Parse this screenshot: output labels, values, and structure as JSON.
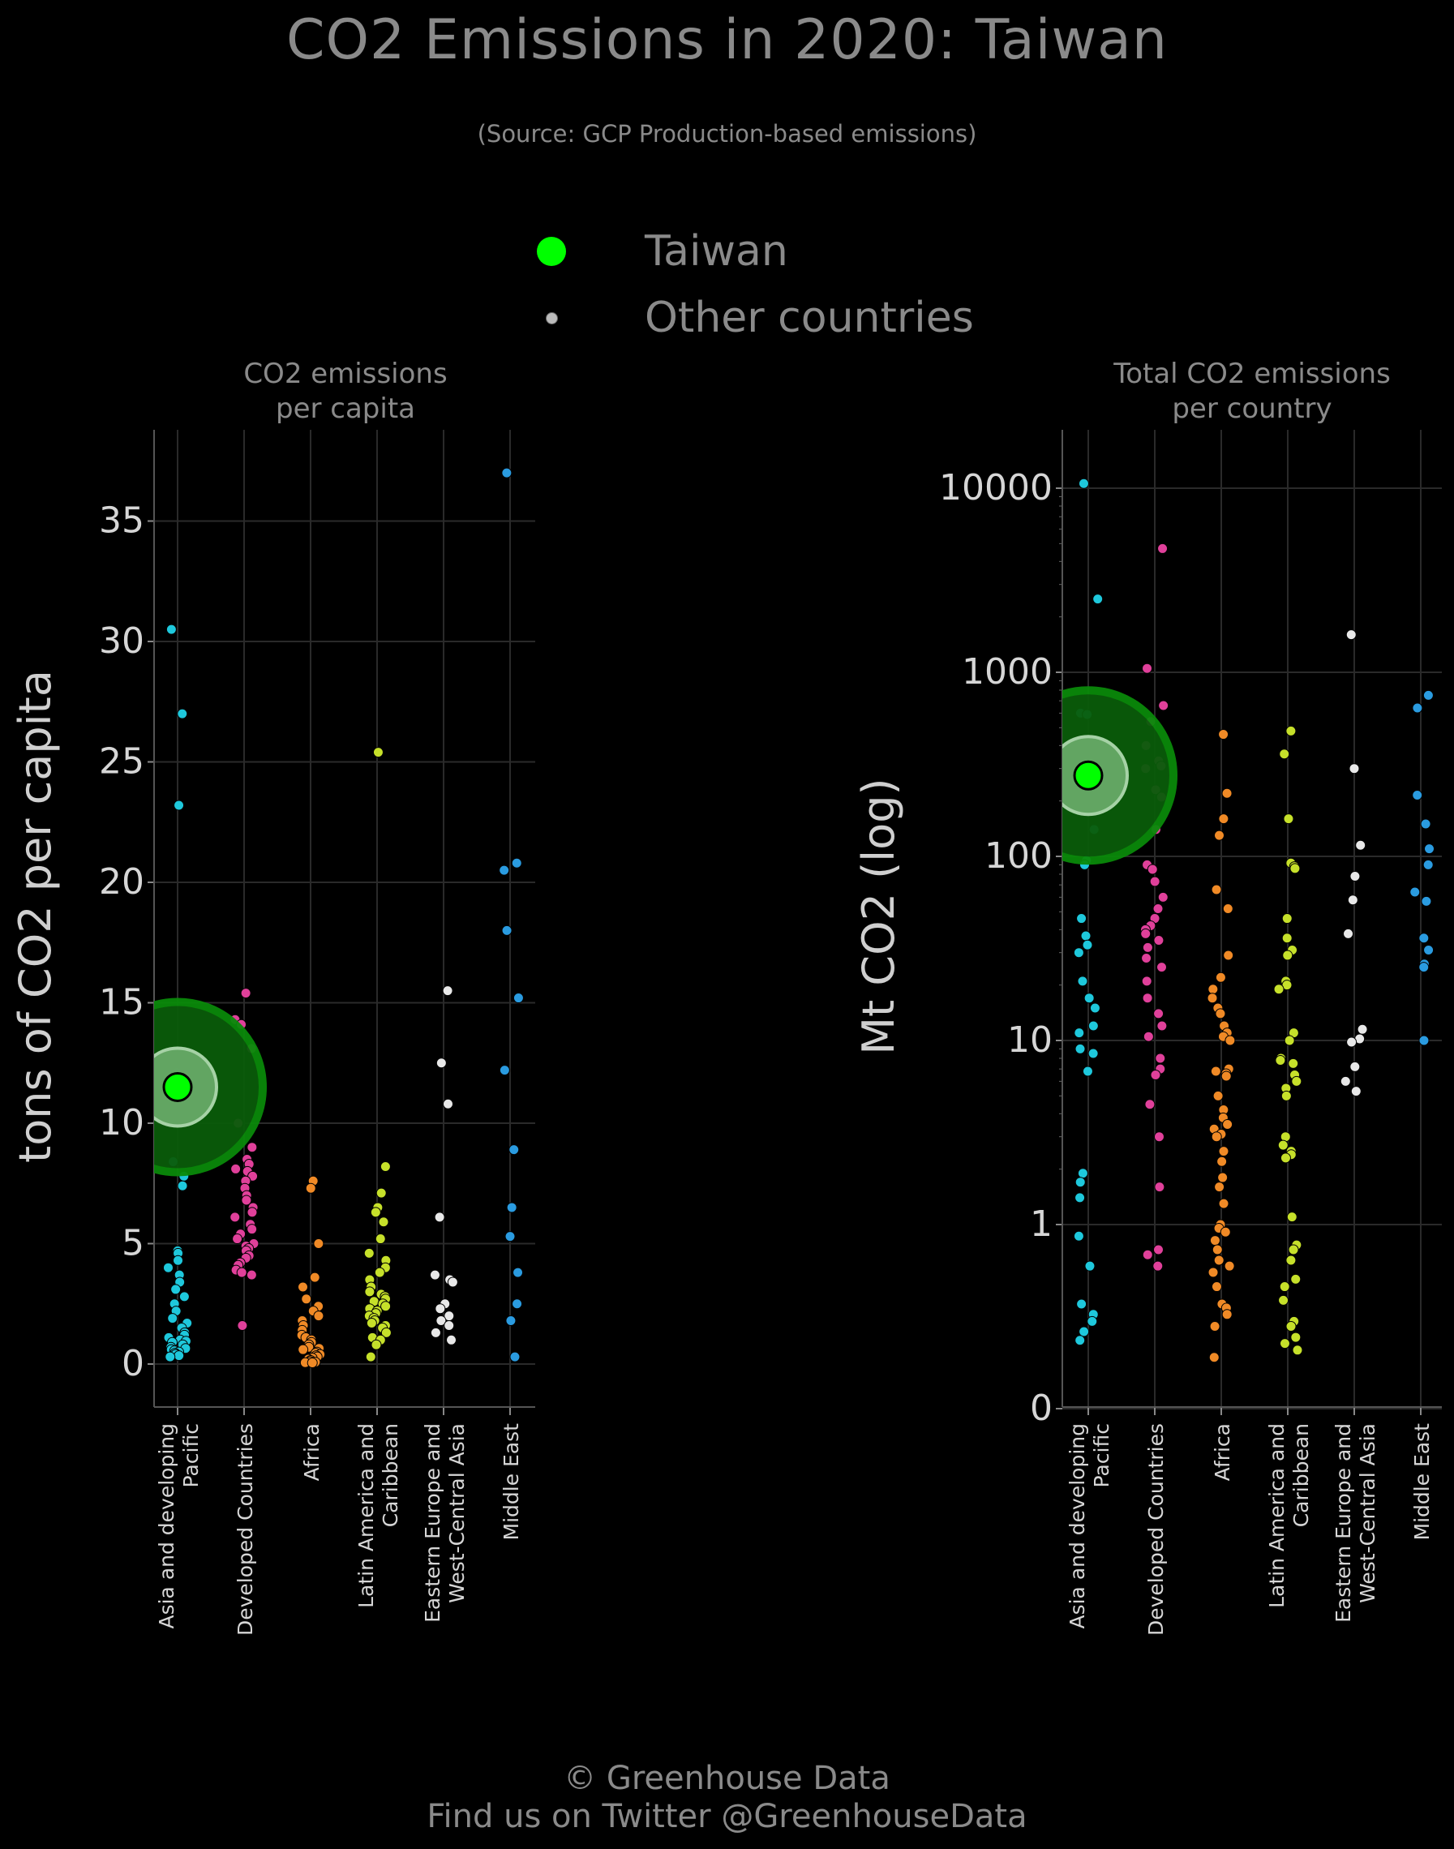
{
  "title": "CO2 Emissions in 2020: Taiwan",
  "subtitle": "(Source: GCP Production-based emissions)",
  "legend": {
    "highlight_label": "Taiwan",
    "other_label": "Other countries",
    "highlight_color": "#00ff00",
    "other_color": "#bbbbbb"
  },
  "footer": {
    "line1": "© Greenhouse Data",
    "line2": "Find us on Twitter @GreenhouseData"
  },
  "colors": {
    "Asia and developing Pacific": "#1ec8dc",
    "Developed Countries": "#e0409a",
    "Africa": "#f08a26",
    "Latin America and Caribbean": "#c6e02a",
    "Eastern Europe and West-Central Asia": "#e8e8e8",
    "Middle East": "#2a9be0"
  },
  "chart_data": [
    {
      "type": "scatter",
      "title": "CO2 emissions\nper capita",
      "ylabel": "tons of CO2 per capita",
      "ylim": [
        -1.5,
        39
      ],
      "yticks": [
        0,
        5,
        10,
        15,
        20,
        25,
        30,
        35
      ],
      "scale": "linear",
      "grid": true,
      "categories": [
        "Asia and developing\nPacific",
        "Developed Countries",
        "Africa",
        "Latin America and\nCaribbean",
        "Eastern Europe and\nWest-Central Asia",
        "Middle East"
      ],
      "highlight": {
        "name": "Taiwan",
        "category_index": 0,
        "value": 11.5
      },
      "series": [
        {
          "category": "Asia and developing Pacific",
          "values": [
            30.5,
            27.0,
            23.2,
            12.1,
            8.4,
            7.8,
            7.4,
            4.7,
            4.6,
            4.3,
            4.0,
            3.7,
            3.4,
            3.1,
            2.8,
            2.5,
            2.2,
            1.9,
            1.7,
            1.5,
            1.3,
            1.2,
            1.1,
            1.0,
            0.95,
            0.9,
            0.8,
            0.7,
            0.65,
            0.6,
            0.55,
            0.5,
            0.45,
            0.4,
            0.35,
            0.3
          ]
        },
        {
          "category": "Developed Countries",
          "values": [
            15.4,
            14.3,
            14.1,
            13.1,
            10.0,
            9.0,
            8.5,
            8.3,
            8.1,
            8.0,
            7.8,
            7.6,
            7.3,
            7.0,
            6.8,
            6.5,
            6.3,
            6.1,
            5.8,
            5.6,
            5.4,
            5.2,
            5.0,
            4.9,
            4.8,
            4.7,
            4.5,
            4.4,
            4.2,
            4.1,
            3.9,
            3.8,
            3.7,
            1.6
          ]
        },
        {
          "category": "Africa",
          "values": [
            7.6,
            7.3,
            5.0,
            3.6,
            3.2,
            2.7,
            2.4,
            2.2,
            2.0,
            1.8,
            1.6,
            1.4,
            1.2,
            1.1,
            1.0,
            0.9,
            0.8,
            0.7,
            0.65,
            0.6,
            0.5,
            0.45,
            0.4,
            0.35,
            0.3,
            0.25,
            0.2,
            0.15,
            0.1,
            0.08,
            0.06,
            0.05
          ]
        },
        {
          "category": "Latin America and Caribbean",
          "values": [
            25.4,
            8.2,
            7.1,
            6.5,
            6.3,
            5.9,
            5.2,
            4.6,
            4.3,
            4.0,
            3.8,
            3.5,
            3.2,
            3.0,
            2.9,
            2.8,
            2.7,
            2.6,
            2.5,
            2.4,
            2.3,
            2.2,
            2.1,
            2.0,
            1.9,
            1.8,
            1.7,
            1.6,
            1.5,
            1.3,
            1.1,
            1.0,
            0.8,
            0.3
          ]
        },
        {
          "category": "Eastern Europe and West-Central Asia",
          "values": [
            15.5,
            12.5,
            10.8,
            6.1,
            3.7,
            3.5,
            3.4,
            2.5,
            2.3,
            2.0,
            1.8,
            1.6,
            1.3,
            1.0
          ]
        },
        {
          "category": "Middle East",
          "values": [
            37.0,
            20.8,
            20.5,
            18.0,
            15.2,
            12.2,
            8.9,
            6.5,
            5.3,
            3.8,
            2.5,
            1.8,
            0.3
          ]
        }
      ]
    },
    {
      "type": "scatter",
      "title": "Total CO2 emissions\nper country",
      "ylabel": "Mt CO2 (log)",
      "scale": "log",
      "ylim": [
        0,
        20000
      ],
      "yticks": [
        0,
        1,
        10,
        100,
        1000,
        10000
      ],
      "grid": true,
      "categories": [
        "Asia and developing\nPacific",
        "Developed Countries",
        "Africa",
        "Latin America and\nCaribbean",
        "Eastern Europe and\nWest-Central Asia",
        "Middle East"
      ],
      "highlight": {
        "name": "Taiwan",
        "category_index": 0,
        "value": 275
      },
      "series": [
        {
          "category": "Asia and developing Pacific",
          "values": [
            10600,
            2500,
            600,
            590,
            140,
            95,
            90,
            46,
            37,
            33,
            30,
            21,
            17,
            15,
            12,
            11,
            9,
            8.5,
            6.8,
            1.9,
            1.7,
            1.4,
            0.85,
            0.55,
            0.3,
            0.25,
            0.22,
            0.18,
            0.15
          ]
        },
        {
          "category": "Developed Countries",
          "values": [
            4700,
            1050,
            660,
            540,
            400,
            330,
            310,
            300,
            230,
            210,
            140,
            90,
            85,
            73,
            60,
            52,
            46,
            42,
            40,
            38,
            35,
            32,
            28,
            25,
            21,
            17,
            14,
            12,
            10.5,
            8,
            7,
            6.5,
            4.5,
            3.0,
            1.6,
            0.7,
            0.65,
            0.55
          ]
        },
        {
          "category": "Africa",
          "values": [
            460,
            220,
            160,
            130,
            66,
            52,
            29,
            22,
            19,
            17,
            15,
            14,
            12,
            11,
            10.5,
            10,
            7,
            6.8,
            6.6,
            6.4,
            5,
            4.2,
            3.8,
            3.5,
            3.3,
            3.1,
            3.0,
            2.5,
            2.2,
            1.8,
            1.6,
            1.3,
            1.0,
            0.95,
            0.9,
            0.8,
            0.7,
            0.6,
            0.55,
            0.5,
            0.4,
            0.3,
            0.28,
            0.25,
            0.2,
            0.1
          ]
        },
        {
          "category": "Latin America and Caribbean",
          "values": [
            480,
            360,
            160,
            92,
            88,
            86,
            46,
            36,
            31,
            29,
            21,
            20,
            19,
            11,
            10,
            8,
            7.8,
            7.5,
            6.5,
            6.0,
            5.5,
            5,
            3,
            2.7,
            2.5,
            2.4,
            2.3,
            1.1,
            0.75,
            0.7,
            0.6,
            0.45,
            0.4,
            0.32,
            0.22,
            0.2,
            0.16,
            0.14,
            0.12
          ]
        },
        {
          "category": "Eastern Europe and West-Central Asia",
          "values": [
            1600,
            300,
            115,
            78,
            58,
            38,
            11.5,
            10.2,
            9.8,
            7.2,
            6.0,
            5.3
          ]
        },
        {
          "category": "Middle East",
          "values": [
            750,
            640,
            215,
            150,
            110,
            90,
            64,
            57,
            36,
            31,
            26,
            25,
            10
          ]
        }
      ]
    }
  ]
}
